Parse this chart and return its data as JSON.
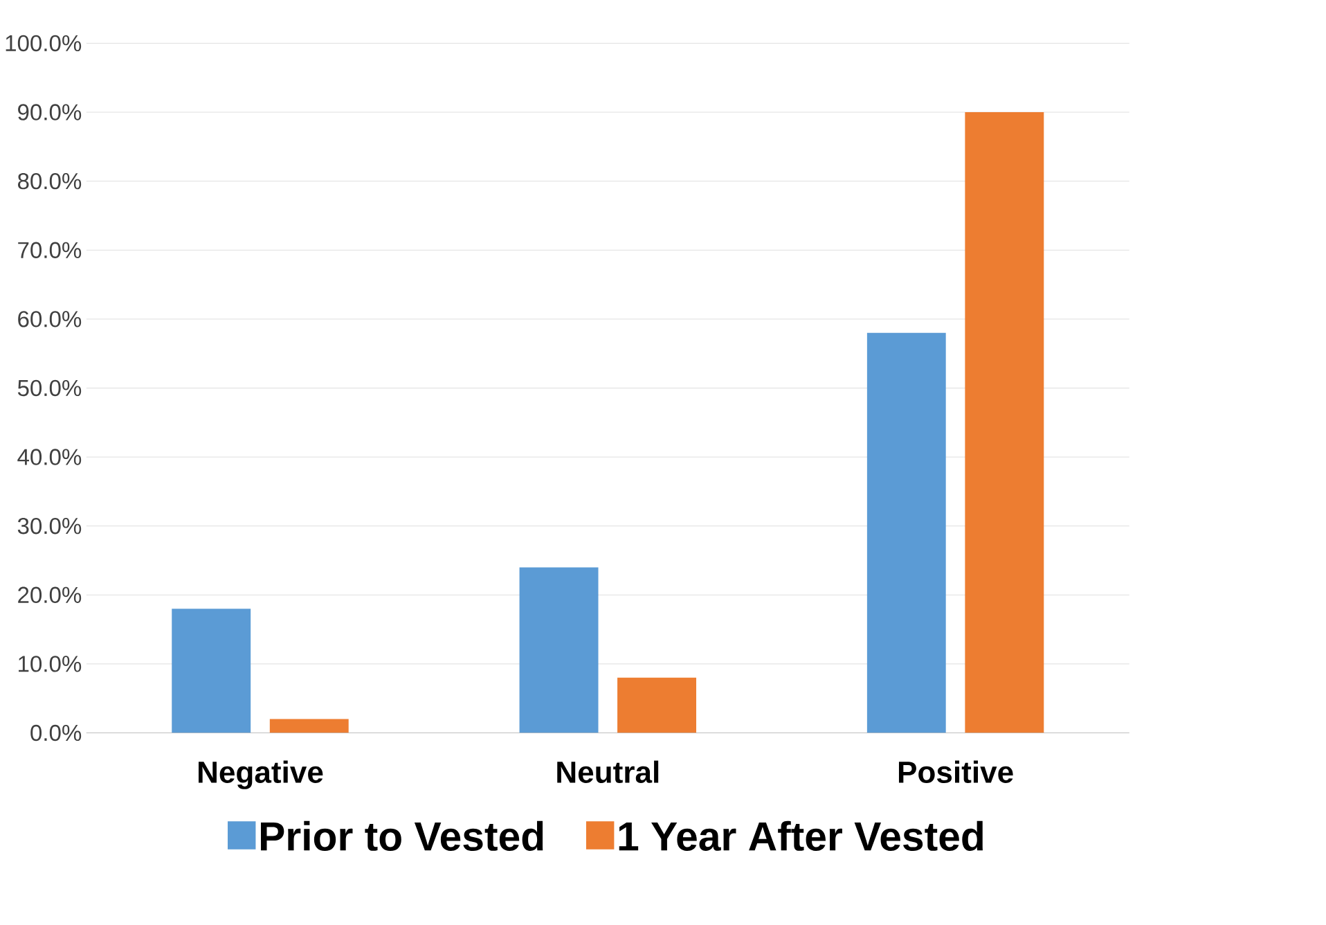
{
  "chart_data": {
    "type": "bar",
    "categories": [
      "Negative",
      "Neutral",
      "Positive"
    ],
    "series": [
      {
        "name": "Prior to Vested",
        "color": "#5b9bd5",
        "values": [
          18,
          24,
          58
        ]
      },
      {
        "name": "1 Year After Vested",
        "color": "#ed7d31",
        "values": [
          2,
          8,
          90
        ]
      }
    ],
    "ylim": [
      0,
      100
    ],
    "yticks": [
      {
        "value": 0,
        "label": "0.0%"
      },
      {
        "value": 10,
        "label": "10.0%"
      },
      {
        "value": 20,
        "label": "20.0%"
      },
      {
        "value": 30,
        "label": "30.0%"
      },
      {
        "value": 40,
        "label": "40.0%"
      },
      {
        "value": 50,
        "label": "50.0%"
      },
      {
        "value": 60,
        "label": "60.0%"
      },
      {
        "value": 70,
        "label": "70.0%"
      },
      {
        "value": 80,
        "label": "80.0%"
      },
      {
        "value": 90,
        "label": "90.0%"
      },
      {
        "value": 100,
        "label": "100.0%"
      }
    ],
    "grid": "y",
    "legend": "bottom"
  }
}
